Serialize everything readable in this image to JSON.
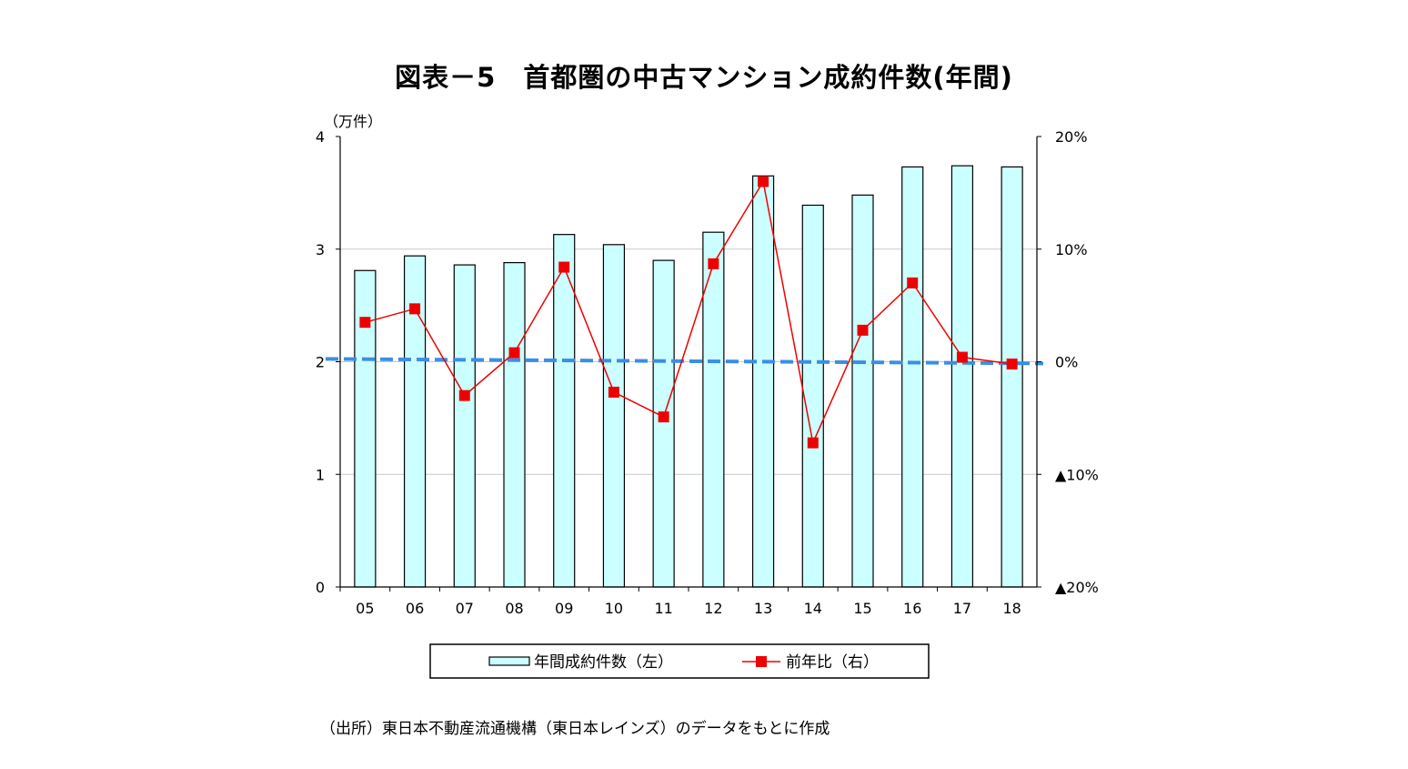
{
  "title": "図表－5　首都圏の中古マンション成約件数(年間)",
  "source": "（出所）東日本不動産流通機構（東日本レインズ）のデータをもとに作成",
  "chart_data": {
    "type": "bar",
    "title": "図表－5　首都圏の中古マンション成約件数(年間)",
    "categories": [
      "05",
      "06",
      "07",
      "08",
      "09",
      "10",
      "11",
      "12",
      "13",
      "14",
      "15",
      "16",
      "17",
      "18"
    ],
    "series": [
      {
        "name": "年間成約件数（左）",
        "type": "bar",
        "axis": "left",
        "color": "#ccffff",
        "values": [
          2.81,
          2.94,
          2.86,
          2.88,
          3.13,
          3.04,
          2.9,
          3.15,
          3.65,
          3.39,
          3.48,
          3.73,
          3.74,
          3.73
        ]
      },
      {
        "name": "前年比（右）",
        "type": "line",
        "axis": "right",
        "color": "#ee0000",
        "values": [
          3.5,
          4.7,
          -3.0,
          0.8,
          8.4,
          -2.7,
          -4.9,
          8.7,
          16.0,
          -7.2,
          2.8,
          7.0,
          0.4,
          -0.2
        ]
      }
    ],
    "left_axis": {
      "label": "（万件）",
      "ylim": [
        0,
        4
      ],
      "ticks": [
        "0",
        "1",
        "2",
        "3",
        "4"
      ]
    },
    "right_axis": {
      "ylim": [
        -20,
        20
      ],
      "ticks": [
        "▲20%",
        "▲10%",
        "0%",
        "10%",
        "20%"
      ]
    },
    "trend_line": {
      "color": "#3a8ee6",
      "start_value": 0.25,
      "end_value": -0.15,
      "axis": "right"
    },
    "legend_position": "bottom-center"
  }
}
